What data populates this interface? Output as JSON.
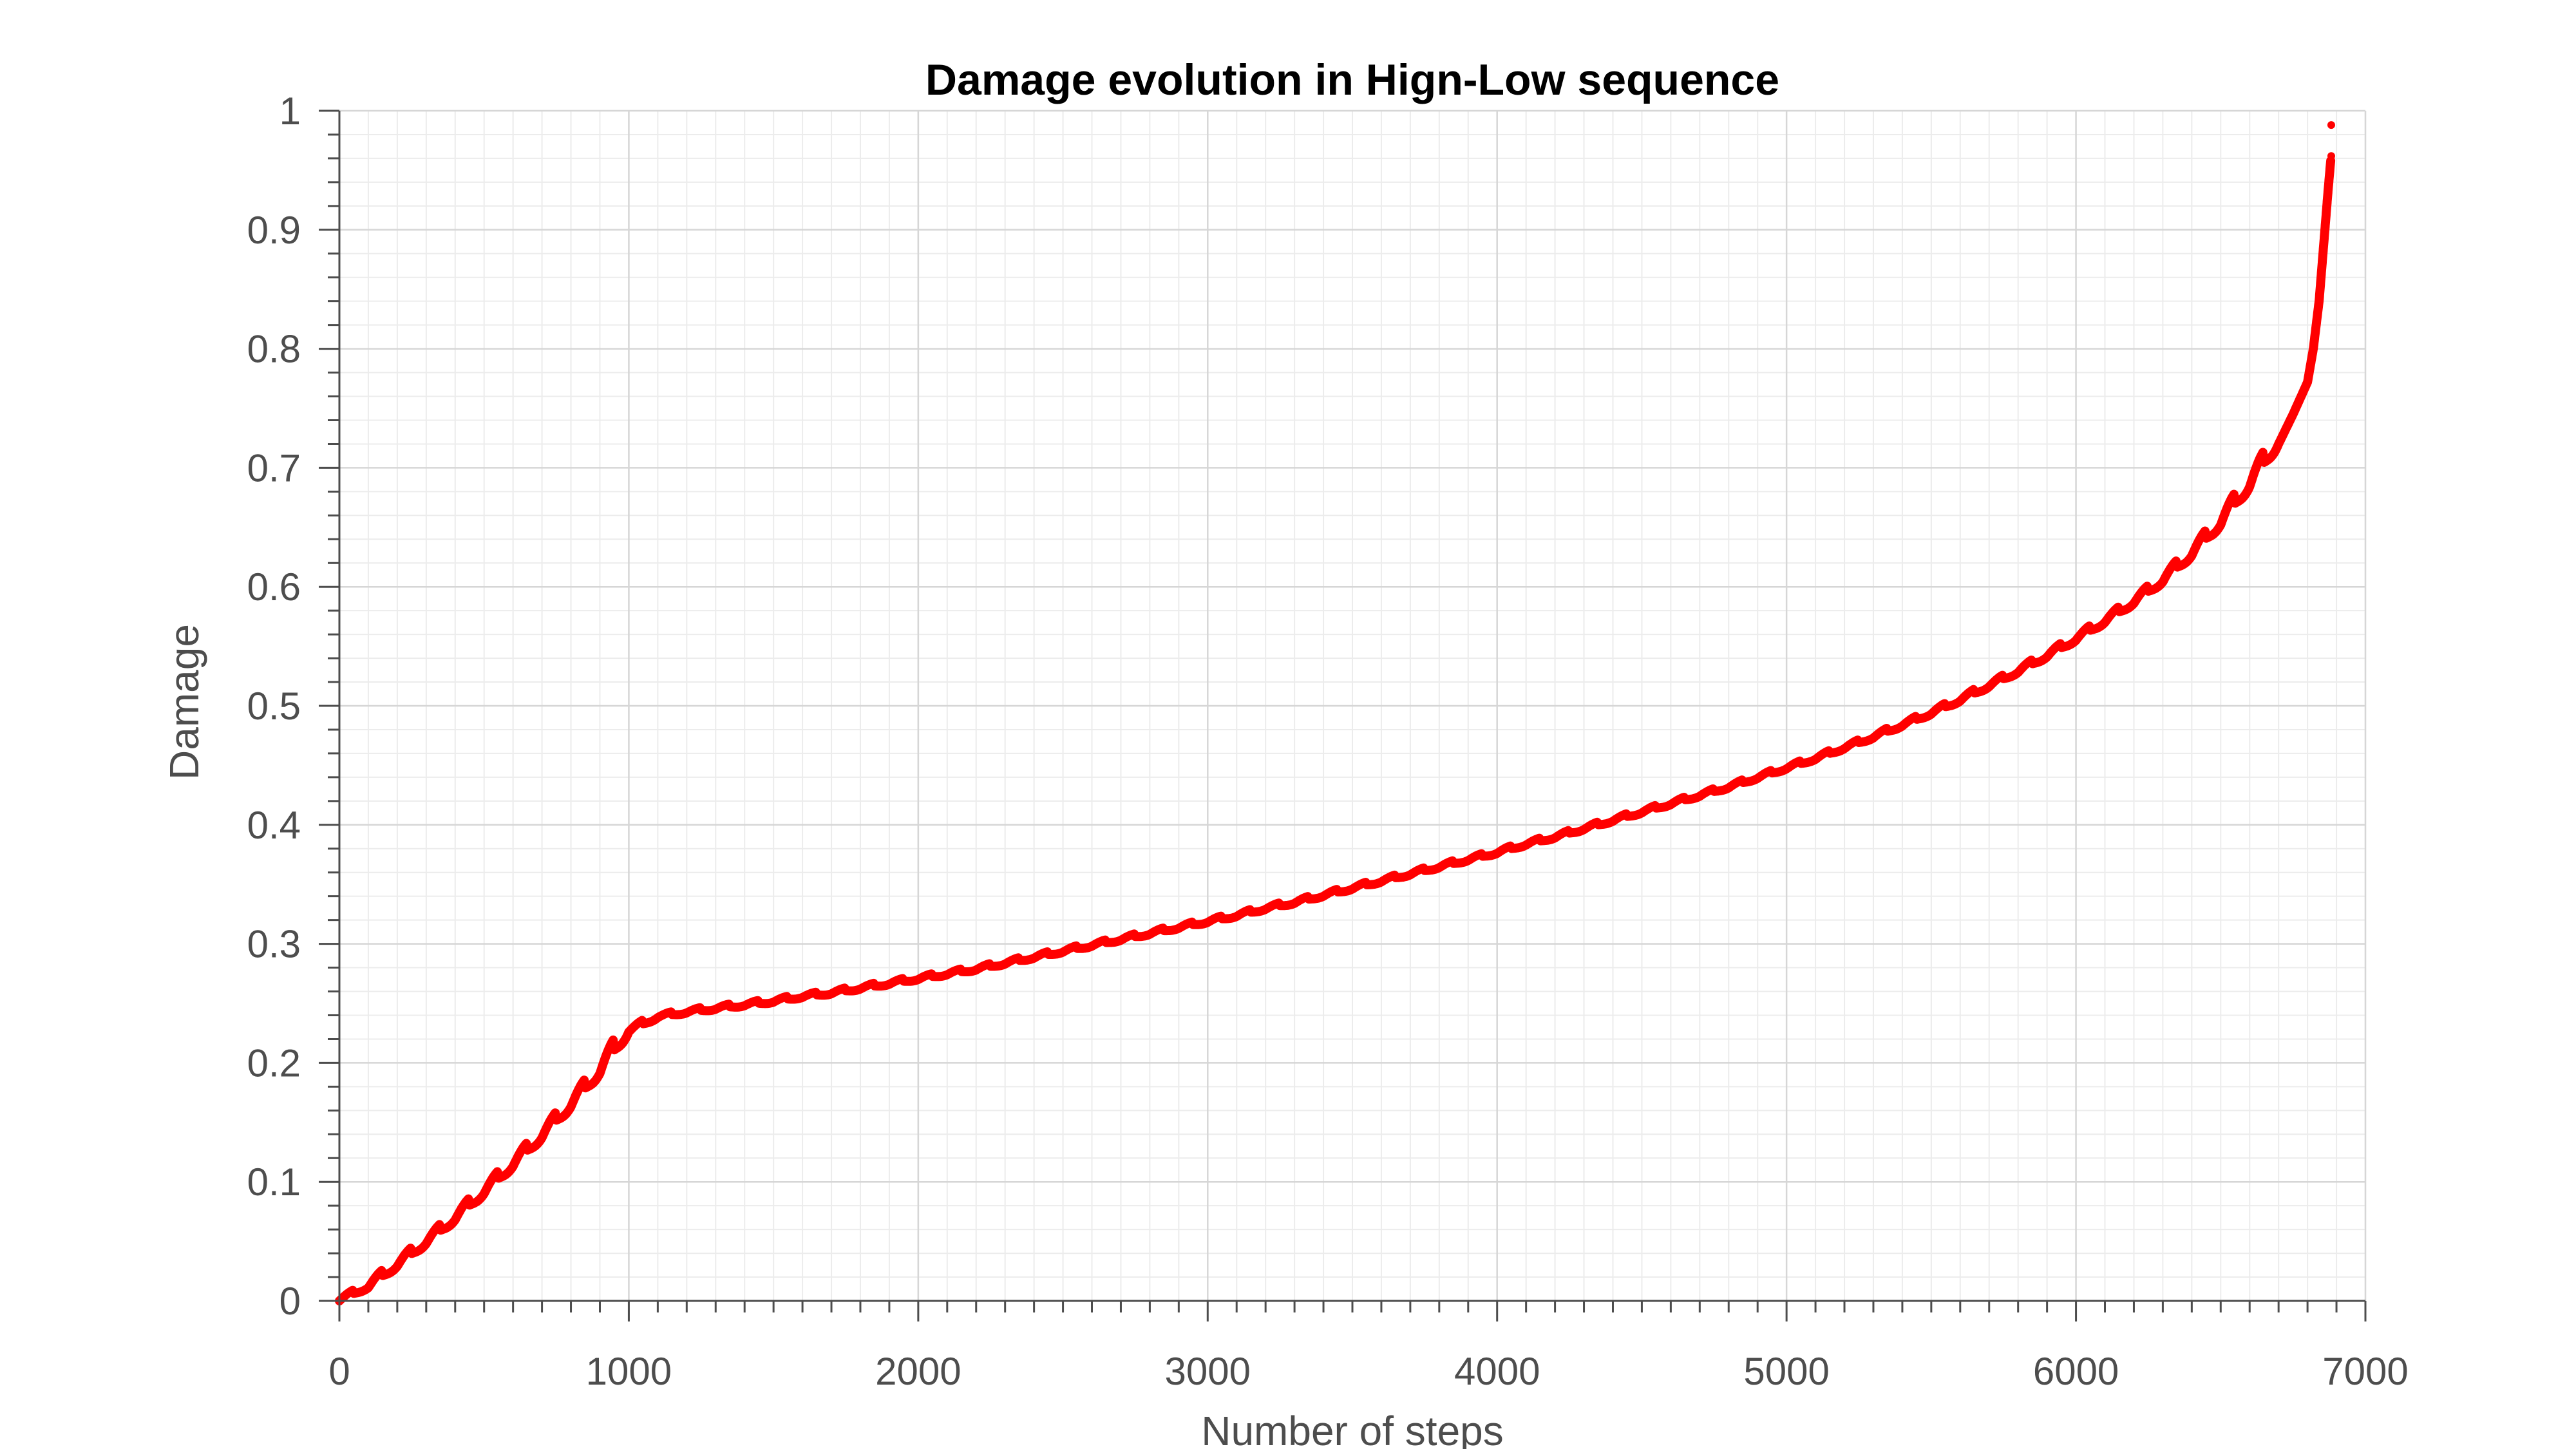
{
  "chart_data": {
    "type": "line",
    "title": "Damage evolution in Hign-Low sequence",
    "xlabel": "Number of steps",
    "ylabel": "Damage",
    "xlim": [
      0,
      7000
    ],
    "ylim": [
      0,
      1
    ],
    "x_ticks": [
      0,
      1000,
      2000,
      3000,
      4000,
      5000,
      6000,
      7000
    ],
    "x_tick_labels": [
      "0",
      "1000",
      "2000",
      "3000",
      "4000",
      "5000",
      "6000",
      "7000"
    ],
    "y_ticks": [
      0,
      0.1,
      0.2,
      0.3,
      0.4,
      0.5,
      0.6,
      0.7,
      0.8,
      0.9,
      1
    ],
    "y_tick_labels": [
      "0",
      "0.1",
      "0.2",
      "0.3",
      "0.4",
      "0.5",
      "0.6",
      "0.7",
      "0.8",
      "0.9",
      "1"
    ],
    "grid": true,
    "minor_grid": true,
    "series": [
      {
        "color": "#ff0000",
        "x": [
          0,
          100,
          200,
          300,
          400,
          500,
          600,
          700,
          800,
          900,
          1000,
          1100,
          1200,
          1300,
          1400,
          1500,
          1600,
          1700,
          1800,
          1900,
          2000,
          2100,
          2200,
          2300,
          2400,
          2500,
          2600,
          2700,
          2800,
          2900,
          3000,
          3100,
          3200,
          3300,
          3400,
          3500,
          3600,
          3700,
          3800,
          3900,
          4000,
          4100,
          4200,
          4300,
          4400,
          4500,
          4600,
          4700,
          4800,
          4900,
          5000,
          5100,
          5200,
          5300,
          5400,
          5500,
          5600,
          5700,
          5800,
          5900,
          6000,
          6100,
          6200,
          6300,
          6400,
          6500,
          6600,
          6700,
          6750,
          6800,
          6820,
          6840,
          6850,
          6860,
          6870,
          6880
        ],
        "y": [
          0,
          0.011,
          0.029,
          0.048,
          0.068,
          0.09,
          0.113,
          0.137,
          0.163,
          0.191,
          0.226,
          0.238,
          0.242,
          0.245,
          0.248,
          0.251,
          0.255,
          0.258,
          0.262,
          0.266,
          0.27,
          0.274,
          0.278,
          0.283,
          0.288,
          0.293,
          0.298,
          0.303,
          0.308,
          0.313,
          0.318,
          0.323,
          0.329,
          0.334,
          0.34,
          0.346,
          0.352,
          0.358,
          0.364,
          0.37,
          0.376,
          0.383,
          0.389,
          0.396,
          0.403,
          0.41,
          0.417,
          0.424,
          0.431,
          0.439,
          0.447,
          0.455,
          0.464,
          0.473,
          0.483,
          0.493,
          0.504,
          0.516,
          0.528,
          0.541,
          0.555,
          0.57,
          0.586,
          0.604,
          0.626,
          0.652,
          0.684,
          0.72,
          0.745,
          0.772,
          0.8,
          0.84,
          0.87,
          0.9,
          0.93,
          0.958
        ]
      }
    ],
    "outlier_points": [
      {
        "x": 6882,
        "y": 0.988
      },
      {
        "x": 6882,
        "y": 0.962
      }
    ]
  }
}
